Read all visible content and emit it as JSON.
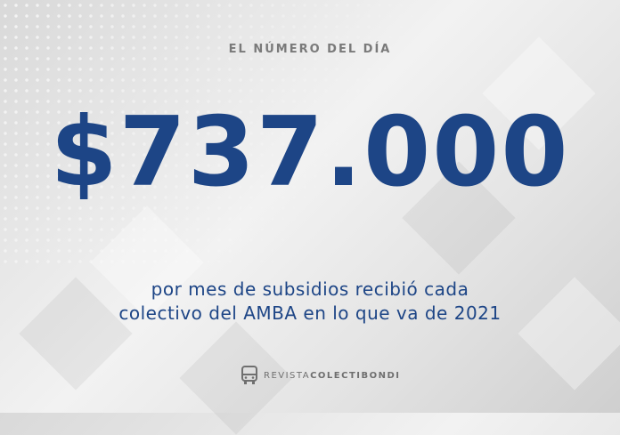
{
  "kicker": "EL NÚMERO DEL DÍA",
  "headline_number": "$737.000",
  "description_line1": "por mes de subsidios recibió cada",
  "description_line2": "colectivo del AMBA en lo que va de 2021",
  "logo": {
    "text_light": "REVISTA",
    "text_bold": "COLECTIBONDI",
    "icon": "bus-icon"
  },
  "colors": {
    "accent": "#1d4586",
    "muted": "#7a7a7a"
  }
}
